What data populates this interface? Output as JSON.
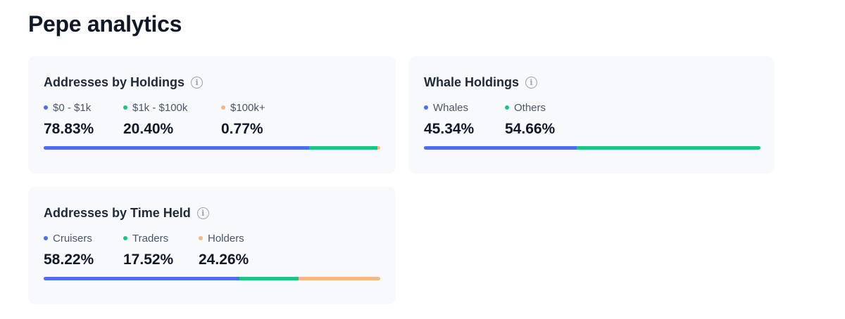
{
  "page": {
    "title": "Pepe analytics"
  },
  "colors": {
    "blue": "#4a6cf7",
    "green": "#16c784",
    "orange": "#f5b880"
  },
  "cards": {
    "holdings": {
      "title": "Addresses by Holdings",
      "info_icon": "info-icon",
      "segments": [
        {
          "label": "$0 - $1k",
          "value": "78.83%",
          "percent": 78.83,
          "color": "#4a6cf7"
        },
        {
          "label": "$1k - $100k",
          "value": "20.40%",
          "percent": 20.4,
          "color": "#16c784"
        },
        {
          "label": "$100k+",
          "value": "0.77%",
          "percent": 0.77,
          "color": "#f5b880"
        }
      ]
    },
    "whale": {
      "title": "Whale Holdings",
      "info_icon": "info-icon",
      "segments": [
        {
          "label": "Whales",
          "value": "45.34%",
          "percent": 45.34,
          "color": "#4a6cf7"
        },
        {
          "label": "Others",
          "value": "54.66%",
          "percent": 54.66,
          "color": "#16c784"
        }
      ]
    },
    "time": {
      "title": "Addresses by Time Held",
      "info_icon": "info-icon",
      "segments": [
        {
          "label": "Cruisers",
          "value": "58.22%",
          "percent": 58.22,
          "color": "#4a6cf7"
        },
        {
          "label": "Traders",
          "value": "17.52%",
          "percent": 17.52,
          "color": "#16c784"
        },
        {
          "label": "Holders",
          "value": "24.26%",
          "percent": 24.26,
          "color": "#f5b880"
        }
      ]
    }
  }
}
